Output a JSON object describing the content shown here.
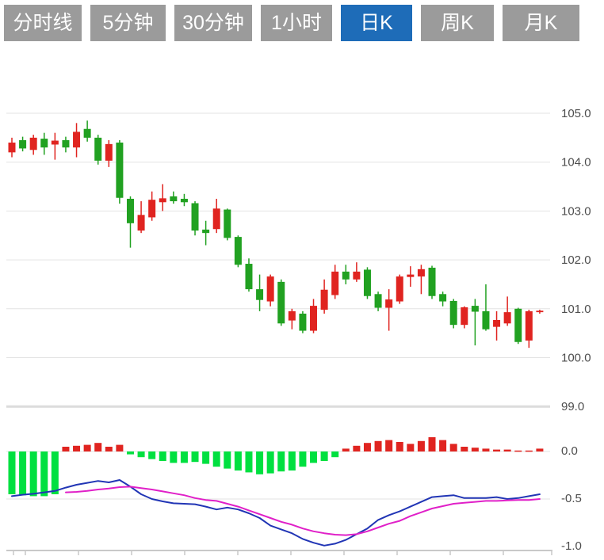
{
  "toolbar": {
    "buttons": [
      {
        "label": "分时线",
        "active": false
      },
      {
        "label": "5分钟",
        "active": false
      },
      {
        "label": "30分钟",
        "active": false
      },
      {
        "label": "1小时",
        "active": false
      },
      {
        "label": "日K",
        "active": true
      },
      {
        "label": "周K",
        "active": false
      },
      {
        "label": "月K",
        "active": false
      }
    ],
    "active_color": "#1e6cb8",
    "inactive_color": "#9b9b9b"
  },
  "chart_data": {
    "type": "candlestick+macd",
    "selected_period": "日K",
    "price_axis": {
      "labels": [
        "105.0",
        "104.0",
        "103.0",
        "102.0",
        "101.0",
        "100.0",
        "99.0"
      ],
      "values": [
        105.0,
        104.0,
        103.0,
        102.0,
        101.0,
        100.0,
        99.0
      ],
      "position": "right"
    },
    "macd_axis": {
      "labels": [
        "0.0",
        "-0.5",
        "-1.0"
      ],
      "values": [
        0.0,
        -0.5,
        -1.0
      ],
      "position": "right"
    },
    "candles_format": "[open, high, low, close]",
    "candles": [
      [
        104.2,
        104.5,
        104.1,
        104.4
      ],
      [
        104.45,
        104.52,
        104.22,
        104.28
      ],
      [
        104.25,
        104.56,
        104.15,
        104.5
      ],
      [
        104.48,
        104.6,
        104.15,
        104.3
      ],
      [
        104.36,
        104.6,
        104.05,
        104.44
      ],
      [
        104.45,
        104.52,
        104.2,
        104.3
      ],
      [
        104.3,
        104.8,
        104.1,
        104.62
      ],
      [
        104.68,
        104.85,
        104.42,
        104.5
      ],
      [
        104.5,
        104.56,
        103.95,
        104.03
      ],
      [
        104.03,
        104.45,
        103.9,
        104.37
      ],
      [
        104.4,
        104.45,
        103.15,
        103.27
      ],
      [
        103.25,
        103.3,
        102.25,
        102.75
      ],
      [
        102.6,
        103.2,
        102.55,
        102.92
      ],
      [
        102.87,
        103.4,
        102.8,
        103.23
      ],
      [
        103.18,
        103.55,
        103.0,
        103.26
      ],
      [
        103.3,
        103.4,
        103.15,
        103.2
      ],
      [
        103.25,
        103.35,
        103.1,
        103.18
      ],
      [
        103.16,
        103.2,
        102.5,
        102.6
      ],
      [
        102.62,
        102.8,
        102.3,
        102.55
      ],
      [
        102.63,
        103.25,
        102.55,
        103.05
      ],
      [
        103.03,
        103.05,
        102.4,
        102.45
      ],
      [
        102.47,
        102.5,
        101.85,
        101.9
      ],
      [
        101.92,
        102.03,
        101.35,
        101.4
      ],
      [
        101.4,
        101.7,
        100.95,
        101.18
      ],
      [
        101.15,
        101.7,
        101.05,
        101.66
      ],
      [
        101.55,
        101.6,
        100.65,
        100.7
      ],
      [
        100.76,
        101.0,
        100.58,
        100.95
      ],
      [
        100.9,
        100.95,
        100.5,
        100.55
      ],
      [
        100.55,
        101.2,
        100.5,
        101.06
      ],
      [
        100.98,
        101.6,
        100.9,
        101.39
      ],
      [
        101.28,
        101.9,
        101.2,
        101.76
      ],
      [
        101.76,
        101.9,
        101.5,
        101.6
      ],
      [
        101.6,
        101.95,
        101.55,
        101.76
      ],
      [
        101.8,
        101.85,
        101.2,
        101.26
      ],
      [
        101.3,
        101.35,
        100.95,
        101.02
      ],
      [
        101.02,
        101.4,
        100.55,
        101.19
      ],
      [
        101.15,
        101.7,
        101.1,
        101.66
      ],
      [
        101.65,
        101.87,
        101.45,
        101.7
      ],
      [
        101.66,
        101.9,
        101.3,
        101.81
      ],
      [
        101.84,
        101.88,
        101.2,
        101.26
      ],
      [
        101.3,
        101.35,
        101.05,
        101.15
      ],
      [
        101.16,
        101.2,
        100.6,
        100.67
      ],
      [
        100.67,
        101.05,
        100.6,
        101.03
      ],
      [
        101.06,
        101.2,
        100.25,
        100.94
      ],
      [
        100.95,
        101.5,
        100.55,
        100.58
      ],
      [
        100.63,
        100.95,
        100.35,
        100.77
      ],
      [
        100.7,
        101.25,
        100.65,
        100.93
      ],
      [
        101.0,
        101.02,
        100.28,
        100.32
      ],
      [
        100.35,
        100.98,
        100.2,
        100.95
      ],
      [
        100.93,
        100.98,
        100.9,
        100.96
      ]
    ],
    "macd_histogram": [
      -0.45,
      -0.46,
      -0.47,
      -0.47,
      -0.45,
      0.05,
      0.06,
      0.07,
      0.09,
      0.05,
      0.07,
      -0.03,
      -0.06,
      -0.08,
      -0.1,
      -0.12,
      -0.12,
      -0.11,
      -0.13,
      -0.16,
      -0.18,
      -0.2,
      -0.22,
      -0.24,
      -0.23,
      -0.21,
      -0.2,
      -0.16,
      -0.12,
      -0.1,
      -0.06,
      0.03,
      0.06,
      0.09,
      0.11,
      0.12,
      0.1,
      0.08,
      0.11,
      0.15,
      0.12,
      0.08,
      0.05,
      0.04,
      0.03,
      0.02,
      0.02,
      0.01,
      0.01,
      0.03
    ],
    "dif_line": [
      -0.47,
      -0.455,
      -0.445,
      -0.43,
      -0.415,
      -0.38,
      -0.35,
      -0.33,
      -0.31,
      -0.325,
      -0.3,
      -0.37,
      -0.45,
      -0.5,
      -0.525,
      -0.545,
      -0.55,
      -0.555,
      -0.58,
      -0.61,
      -0.59,
      -0.61,
      -0.65,
      -0.7,
      -0.78,
      -0.82,
      -0.86,
      -0.92,
      -0.96,
      -0.99,
      -0.97,
      -0.93,
      -0.87,
      -0.81,
      -0.72,
      -0.67,
      -0.63,
      -0.58,
      -0.53,
      -0.48,
      -0.47,
      -0.46,
      -0.49,
      -0.49,
      -0.49,
      -0.48,
      -0.5,
      -0.49,
      -0.47,
      -0.45
    ],
    "dea_line": [
      null,
      null,
      null,
      null,
      null,
      -0.43,
      -0.425,
      -0.415,
      -0.4,
      -0.39,
      -0.375,
      -0.37,
      -0.385,
      -0.4,
      -0.42,
      -0.44,
      -0.46,
      -0.49,
      -0.51,
      -0.52,
      -0.55,
      -0.58,
      -0.62,
      -0.66,
      -0.7,
      -0.74,
      -0.77,
      -0.81,
      -0.84,
      -0.86,
      -0.875,
      -0.88,
      -0.87,
      -0.84,
      -0.8,
      -0.76,
      -0.73,
      -0.68,
      -0.64,
      -0.6,
      -0.575,
      -0.55,
      -0.54,
      -0.53,
      -0.52,
      -0.52,
      -0.515,
      -0.51,
      -0.51,
      -0.5
    ],
    "colors": {
      "up": "#e02420",
      "down": "#21a121",
      "hist_up": "#e02420",
      "hist_down": "#00e040",
      "dif": "#2135b5",
      "dea": "#e020c8",
      "grid": "#e3e3e3",
      "grid_heavy": "#dcdcdc",
      "axis": "#c9c9c9",
      "axis_text": "#4d4d4d"
    },
    "grid": true,
    "legend": false
  }
}
